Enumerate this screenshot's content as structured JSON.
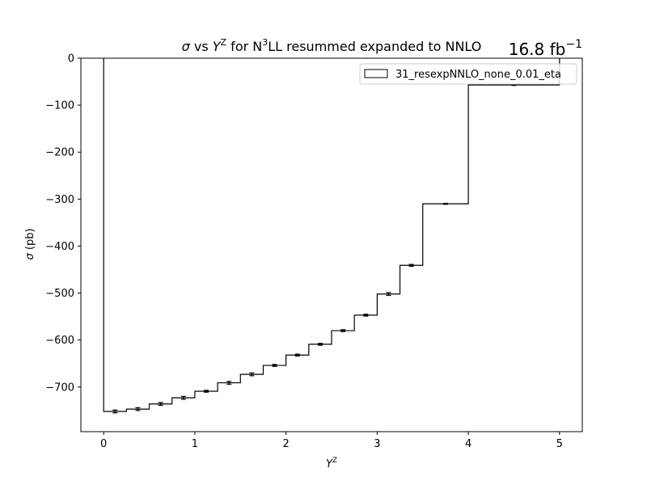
{
  "chart_data": {
    "type": "step-histogram",
    "title_parts": {
      "sigma": "σ",
      "vs": " vs ",
      "Y": "Y",
      "Z": "Z",
      "for": " for N",
      "three": "3",
      "rest": "LL resummed expanded to NNLO"
    },
    "lumi": {
      "base": "16.8 fb",
      "exp": "−1"
    },
    "xlabel": {
      "base": "Y",
      "sup": "Z"
    },
    "ylabel": {
      "sym": "σ",
      "unit": " (pb)"
    },
    "xlim": [
      -0.25,
      5.25
    ],
    "ylim": [
      -795,
      0
    ],
    "xticks": [
      0,
      1,
      2,
      3,
      4,
      5
    ],
    "xtick_labels": [
      "0",
      "1",
      "2",
      "3",
      "4",
      "5"
    ],
    "yticks": [
      0,
      -100,
      -200,
      -300,
      -400,
      -500,
      -600,
      -700
    ],
    "ytick_labels": [
      "0",
      "−100",
      "−200",
      "−300",
      "−400",
      "−500",
      "−600",
      "−700"
    ],
    "legend": {
      "label": "31_resexpNNLO_none_0.01_eta",
      "placement": "upper right"
    },
    "bins": [
      {
        "x0": 0.0,
        "x1": 0.25,
        "y": -752,
        "err": 3
      },
      {
        "x0": 0.25,
        "x1": 0.5,
        "y": -747,
        "err": 3
      },
      {
        "x0": 0.5,
        "x1": 0.75,
        "y": -736,
        "err": 3
      },
      {
        "x0": 0.75,
        "x1": 1.0,
        "y": -723,
        "err": 3
      },
      {
        "x0": 1.0,
        "x1": 1.25,
        "y": -709,
        "err": 2
      },
      {
        "x0": 1.25,
        "x1": 1.5,
        "y": -691,
        "err": 3
      },
      {
        "x0": 1.5,
        "x1": 1.75,
        "y": -673,
        "err": 3
      },
      {
        "x0": 1.75,
        "x1": 2.0,
        "y": -654,
        "err": 2
      },
      {
        "x0": 2.0,
        "x1": 2.25,
        "y": -632,
        "err": 2
      },
      {
        "x0": 2.25,
        "x1": 2.5,
        "y": -609,
        "err": 2
      },
      {
        "x0": 2.5,
        "x1": 2.75,
        "y": -580,
        "err": 2
      },
      {
        "x0": 2.75,
        "x1": 3.0,
        "y": -547,
        "err": 2
      },
      {
        "x0": 3.0,
        "x1": 3.25,
        "y": -502,
        "err": 3
      },
      {
        "x0": 3.25,
        "x1": 3.5,
        "y": -441,
        "err": 2
      },
      {
        "x0": 3.5,
        "x1": 4.0,
        "y": -310,
        "err": 1
      },
      {
        "x0": 4.0,
        "x1": 5.0,
        "y": -57,
        "err": 1
      }
    ]
  }
}
